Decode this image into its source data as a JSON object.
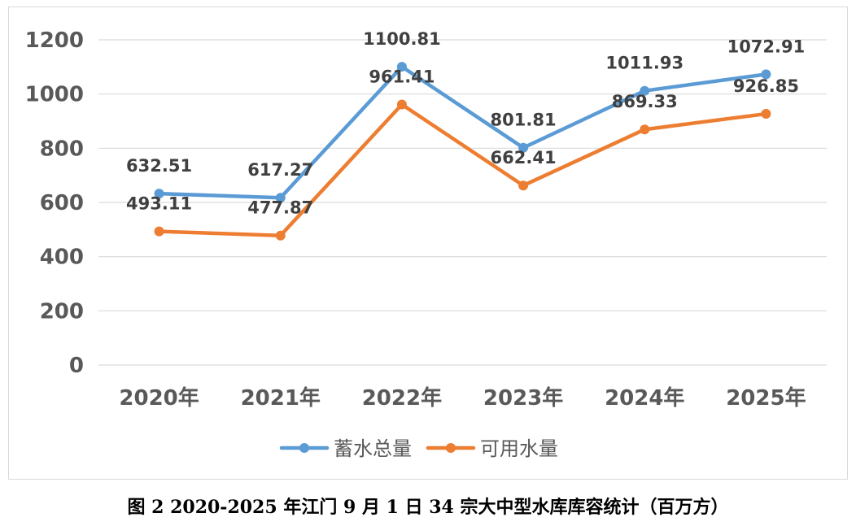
{
  "chart_data": {
    "type": "line",
    "title": "",
    "xlabel": "",
    "ylabel": "",
    "ylim": [
      0,
      1200
    ],
    "yticks": [
      0,
      200,
      400,
      600,
      800,
      1000,
      1200
    ],
    "grid": true,
    "legend_position": "bottom",
    "categories": [
      "2020年",
      "2021年",
      "2022年",
      "2023年",
      "2024年",
      "2025年"
    ],
    "series": [
      {
        "name": "蓄水总量",
        "color": "#5b9bd5",
        "values": [
          632.51,
          617.27,
          1100.81,
          801.81,
          1011.93,
          1072.91
        ],
        "labels": [
          "632.51",
          "617.27",
          "1100.81",
          "801.81",
          "1011.93",
          "1072.91"
        ]
      },
      {
        "name": "可用水量",
        "color": "#ed7d31",
        "values": [
          493.11,
          477.87,
          961.41,
          662.41,
          869.33,
          926.85
        ],
        "labels": [
          "493.11",
          "477.87",
          "961.41",
          "662.41",
          "869.33",
          "926.85"
        ]
      }
    ]
  },
  "caption": "图 2 2020-2025 年江门 9 月 1 日 34 宗大中型水库库容统计（百万方）",
  "colors": {
    "grid": "#d9d9d9",
    "axis_text": "#595959",
    "label_text": "#404040"
  }
}
